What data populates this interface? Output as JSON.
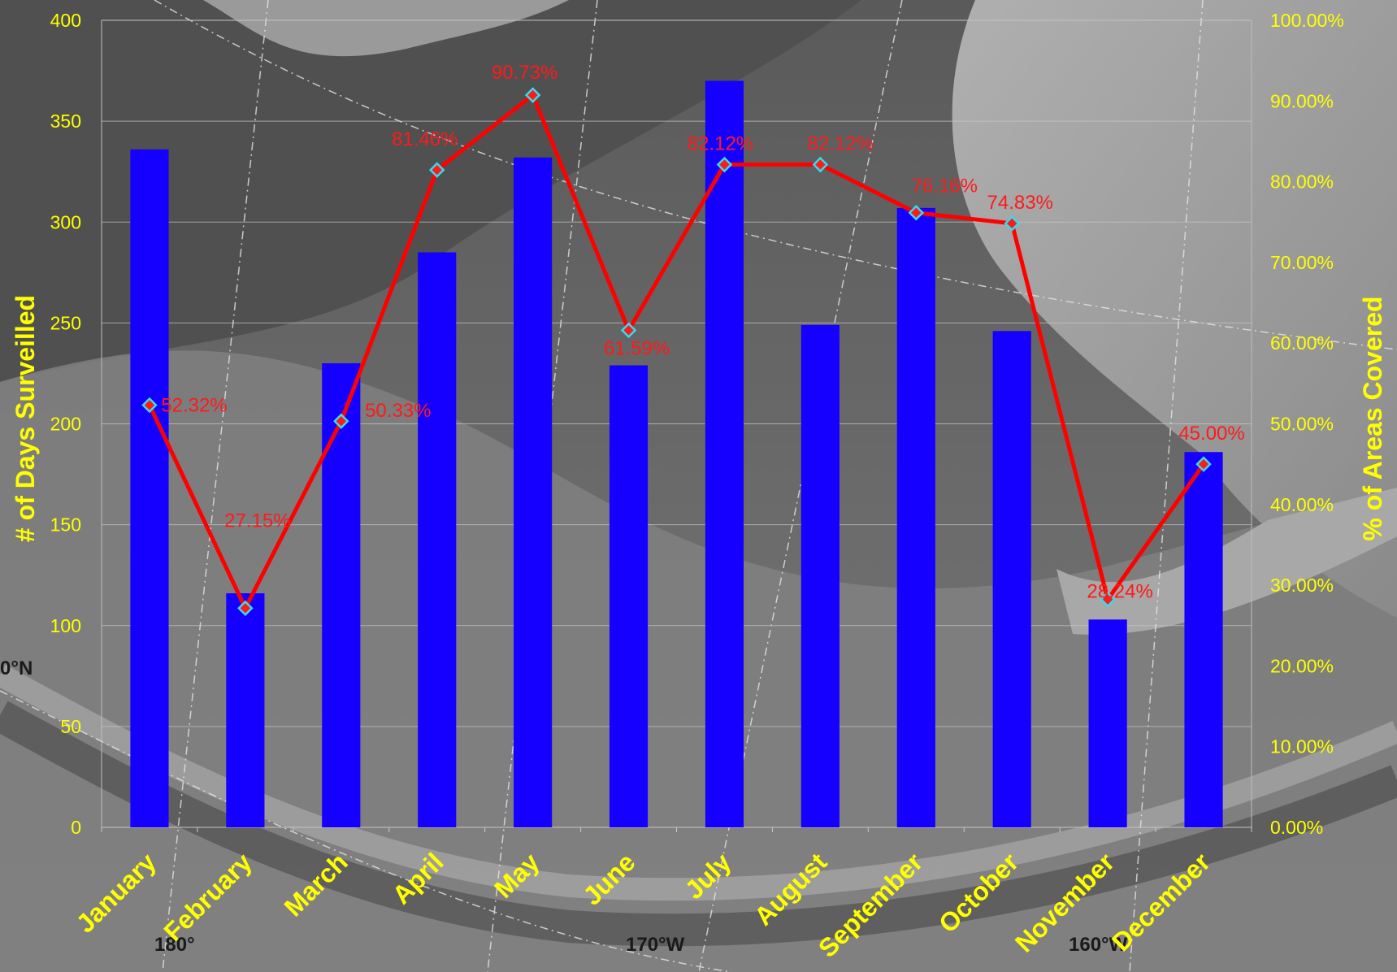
{
  "colors": {
    "bar": "#1500ff",
    "line": "#ff0000",
    "marker_fill": "#ff1a1a",
    "marker_edge": "#33ddee",
    "axis_text": "#ffff00",
    "data_label": "#ff1a1a"
  },
  "map_labels": {
    "lat": "0°N",
    "lon1": "180°",
    "lon2": "170°W",
    "lon3": "160°W"
  },
  "chart_data": {
    "type": "bar",
    "categories": [
      "January",
      "February",
      "March",
      "April",
      "May",
      "June",
      "July",
      "August",
      "September",
      "October",
      "November",
      "December"
    ],
    "series": [
      {
        "name": "",
        "type": "bar",
        "axis": "left",
        "values": [
          336,
          116,
          230,
          285,
          332,
          229,
          370,
          249,
          307,
          246,
          103,
          186
        ]
      },
      {
        "name": "",
        "type": "line",
        "axis": "right",
        "values": [
          52.32,
          27.15,
          50.33,
          81.46,
          90.73,
          61.59,
          82.12,
          82.12,
          76.16,
          74.83,
          28.24,
          45.0
        ],
        "labels": [
          "52.32%",
          "27.15%",
          "50.33%",
          "81.46%",
          "90.73%",
          "61.59%",
          "82.12%",
          "82.12%",
          "76.16%",
          "74.83%",
          "28.24%",
          "45.00%"
        ]
      }
    ],
    "ylabel": "# of Days Surveilled",
    "y2label": "% of Areas Covered",
    "ylim": [
      0,
      400
    ],
    "y2lim": [
      0,
      100
    ],
    "yticks": [
      "0",
      "50",
      "100",
      "150",
      "200",
      "250",
      "300",
      "350",
      "400"
    ],
    "y2ticks": [
      "0.00%",
      "10.00%",
      "20.00%",
      "30.00%",
      "40.00%",
      "50.00%",
      "60.00%",
      "70.00%",
      "80.00%",
      "90.00%",
      "100.00%"
    ],
    "grid": true,
    "legend": "none"
  }
}
